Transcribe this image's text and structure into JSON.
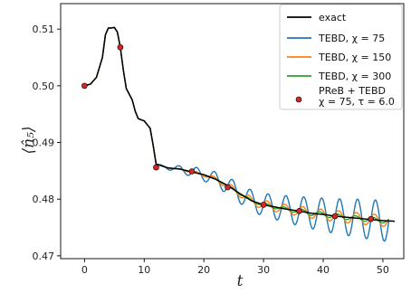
{
  "chart_data": {
    "type": "line",
    "xlabel": "t",
    "ylabel": "⟨n̂₅⟩",
    "xlim": [
      -4,
      53.5
    ],
    "ylim": [
      0.4695,
      0.5145
    ],
    "xticks": [
      0,
      10,
      20,
      30,
      40,
      50
    ],
    "yticks": [
      0.47,
      0.48,
      0.49,
      0.5,
      0.51
    ],
    "ytick_labels": [
      "0.47",
      "0.48",
      "0.49",
      "0.50",
      "0.51"
    ],
    "grid": false,
    "legend_position": "top-right",
    "exact": {
      "name": "exact",
      "color": "#000000",
      "x": [
        0,
        1,
        2,
        3,
        3.5,
        4,
        4.5,
        5,
        5.5,
        6,
        6.5,
        7,
        7.5,
        8,
        8.5,
        9,
        10,
        11,
        11.5,
        12,
        14,
        16,
        18,
        20,
        22,
        24,
        26,
        28,
        30,
        32,
        34,
        36,
        38,
        40,
        42,
        44,
        46,
        48,
        50,
        52
      ],
      "y": [
        0.5,
        0.5003,
        0.5015,
        0.505,
        0.509,
        0.5102,
        0.5102,
        0.5103,
        0.5095,
        0.5068,
        0.5028,
        0.4995,
        0.4985,
        0.4975,
        0.4955,
        0.4942,
        0.4938,
        0.4925,
        0.4895,
        0.4862,
        0.4855,
        0.4853,
        0.4848,
        0.4843,
        0.4835,
        0.4824,
        0.481,
        0.4797,
        0.479,
        0.4786,
        0.4782,
        0.4779,
        0.4775,
        0.4773,
        0.477,
        0.4768,
        0.4766,
        0.4764,
        0.4762,
        0.4761
      ]
    },
    "series": [
      {
        "name": "TEBD, χ = 75",
        "color": "#1f77b4",
        "osc_amp": [
          0,
          0,
          0,
          0,
          0,
          0,
          0,
          0,
          0,
          0,
          0,
          0,
          0,
          0,
          0,
          0,
          0,
          0,
          0,
          0,
          0.0003,
          0.0006,
          0.0009,
          0.0011,
          0.0013,
          0.0015,
          0.0017,
          0.0019,
          0.002,
          0.0022,
          0.0024,
          0.0026,
          0.0027,
          0.0029,
          0.0031,
          0.0032,
          0.0034,
          0.0035,
          0.0036,
          0.0036
        ],
        "x_end": 51
      },
      {
        "name": "TEBD, χ = 150",
        "color": "#ff7f0e",
        "osc_amp": [
          0,
          0,
          0,
          0,
          0,
          0,
          0,
          0,
          0,
          0,
          0,
          0,
          0,
          0,
          0,
          0,
          0,
          0,
          0,
          0,
          0,
          0.0001,
          0.0002,
          0.0003,
          0.0004,
          0.0005,
          0.0006,
          0.0007,
          0.0008,
          0.0008,
          0.0008,
          0.0009,
          0.0009,
          0.0009,
          0.001,
          0.001,
          0.001,
          0.001,
          0.001,
          0.001
        ],
        "x_end": 51
      },
      {
        "name": "TEBD, χ = 300",
        "color": "#2ca02c",
        "osc_amp": [
          0,
          0,
          0,
          0,
          0,
          0,
          0,
          0,
          0,
          0,
          0,
          0,
          0,
          0,
          0,
          0,
          0,
          0,
          0,
          0,
          0,
          0,
          0,
          0,
          0.0001,
          0.0001,
          0.0002,
          0.0002,
          0.0003,
          0.0003,
          0.0003,
          0.0004,
          0.0004,
          0.0004,
          0.0004,
          0.0004,
          0.0004,
          0.0004,
          0.0004,
          0.0004
        ],
        "x_end": 51
      }
    ],
    "preb_points": {
      "name": "PReB + TEBD",
      "name_line2": "χ = 75, τ = 6.0",
      "color": "#d62728",
      "edge_color": "#000000",
      "x": [
        0,
        6,
        12,
        18,
        24,
        30,
        36,
        42,
        48
      ],
      "y": [
        0.5,
        0.5068,
        0.4856,
        0.4849,
        0.4821,
        0.479,
        0.4779,
        0.477,
        0.4765
      ]
    },
    "legend": [
      "exact",
      "TEBD, χ = 75",
      "TEBD, χ = 150",
      "TEBD, χ = 300",
      "PReB + TEBD"
    ]
  }
}
